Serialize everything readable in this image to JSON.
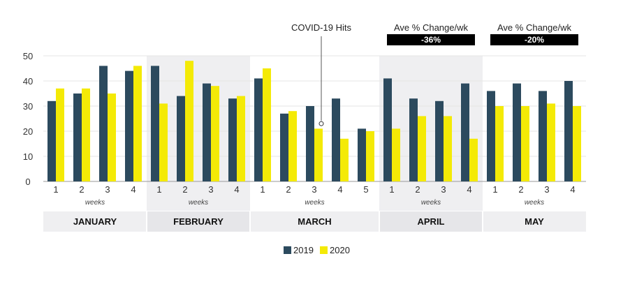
{
  "chart_data": {
    "type": "bar",
    "colors": {
      "s2019": "#2c4a5e",
      "s2020": "#f4ea06",
      "shade": "#efeff1",
      "band": "#e6e6e9",
      "banner": "#000000"
    },
    "ylim": [
      0,
      50
    ],
    "yticks": [
      "0",
      "10",
      "20",
      "30",
      "40",
      "50"
    ],
    "weeks_label": "weeks",
    "months": [
      {
        "name": "JANUARY",
        "shaded": false,
        "weeks": [
          "1",
          "2",
          "3",
          "4"
        ],
        "v2019": [
          32,
          35,
          46,
          44
        ],
        "v2020": [
          37,
          37,
          35,
          46
        ]
      },
      {
        "name": "FEBRUARY",
        "shaded": true,
        "weeks": [
          "1",
          "2",
          "3",
          "4"
        ],
        "v2019": [
          46,
          34,
          39,
          33
        ],
        "v2020": [
          31,
          48,
          38,
          34
        ]
      },
      {
        "name": "MARCH",
        "shaded": false,
        "weeks": [
          "1",
          "2",
          "3",
          "4",
          "5"
        ],
        "v2019": [
          41,
          27,
          30,
          33,
          21
        ],
        "v2020": [
          45,
          28,
          21,
          17,
          20
        ]
      },
      {
        "name": "APRIL",
        "shaded": true,
        "weeks": [
          "1",
          "2",
          "3",
          "4"
        ],
        "v2019": [
          41,
          33,
          32,
          39
        ],
        "v2020": [
          21,
          26,
          26,
          17
        ]
      },
      {
        "name": "MAY",
        "shaded": false,
        "weeks": [
          "1",
          "2",
          "3",
          "4"
        ],
        "v2019": [
          36,
          39,
          36,
          40
        ],
        "v2020": [
          30,
          30,
          31,
          30
        ]
      }
    ],
    "series": [
      {
        "name": "2019"
      },
      {
        "name": "2020"
      }
    ],
    "annotations": {
      "covid": {
        "text": "COVID-19 Hits",
        "month": 2,
        "week": 2,
        "value": 23
      },
      "banners": [
        {
          "month": 3,
          "label": "Ave % Change/wk",
          "value": "-36%"
        },
        {
          "month": 4,
          "label": "Ave % Change/wk",
          "value": "-20%"
        }
      ]
    },
    "legend": "bottom-center",
    "grid": true
  }
}
